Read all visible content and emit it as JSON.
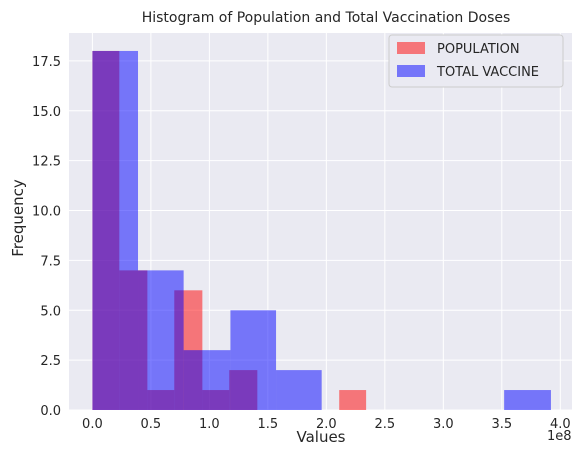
{
  "chart_data": {
    "type": "histogram",
    "title": "Histogram of Population and Total Vaccination Doses",
    "xlabel": "Values",
    "ylabel": "Frequency",
    "x_offset_label": "1e8",
    "xlim": [
      -20000000.0,
      410000000.0
    ],
    "ylim": [
      0,
      18.9
    ],
    "xticks": [
      0,
      50000000.0,
      100000000.0,
      150000000.0,
      200000000.0,
      250000000.0,
      300000000.0,
      350000000.0,
      400000000.0
    ],
    "xtick_labels": [
      "0.0",
      "0.5",
      "1.0",
      "1.5",
      "2.0",
      "2.5",
      "3.0",
      "3.5",
      "4.0"
    ],
    "yticks": [
      0,
      2.5,
      5,
      7.5,
      10,
      12.5,
      15,
      17.5
    ],
    "ytick_labels": [
      "0.0",
      "2.5",
      "5.0",
      "7.5",
      "10.0",
      "12.5",
      "15.0",
      "17.5"
    ],
    "grid": true,
    "legend_position": "top-right",
    "series": [
      {
        "name": "POPULATION",
        "color": "#ff0000",
        "alpha": 0.5,
        "bins": [
          {
            "x0": 0.0,
            "x1": 23000000.0,
            "count": 18
          },
          {
            "x0": 23000000.0,
            "x1": 47000000.0,
            "count": 7
          },
          {
            "x0": 47000000.0,
            "x1": 70000000.0,
            "count": 1
          },
          {
            "x0": 70000000.0,
            "x1": 94000000.0,
            "count": 6
          },
          {
            "x0": 94000000.0,
            "x1": 117000000.0,
            "count": 1
          },
          {
            "x0": 117000000.0,
            "x1": 141000000.0,
            "count": 2
          },
          {
            "x0": 141000000.0,
            "x1": 164000000.0,
            "count": 0
          },
          {
            "x0": 164000000.0,
            "x1": 188000000.0,
            "count": 0
          },
          {
            "x0": 188000000.0,
            "x1": 211000000.0,
            "count": 0
          },
          {
            "x0": 211000000.0,
            "x1": 234000000.0,
            "count": 1
          }
        ]
      },
      {
        "name": "TOTAL VACCINE",
        "color": "#0000ff",
        "alpha": 0.5,
        "bins": [
          {
            "x0": 0.0,
            "x1": 39000000.0,
            "count": 18
          },
          {
            "x0": 39000000.0,
            "x1": 78000000.0,
            "count": 7
          },
          {
            "x0": 78000000.0,
            "x1": 118000000.0,
            "count": 3
          },
          {
            "x0": 118000000.0,
            "x1": 157000000.0,
            "count": 5
          },
          {
            "x0": 157000000.0,
            "x1": 196000000.0,
            "count": 2
          },
          {
            "x0": 196000000.0,
            "x1": 235000000.0,
            "count": 0
          },
          {
            "x0": 235000000.0,
            "x1": 274000000.0,
            "count": 0
          },
          {
            "x0": 274000000.0,
            "x1": 313000000.0,
            "count": 0
          },
          {
            "x0": 313000000.0,
            "x1": 352000000.0,
            "count": 0
          },
          {
            "x0": 352000000.0,
            "x1": 392000000.0,
            "count": 1
          }
        ]
      }
    ]
  }
}
